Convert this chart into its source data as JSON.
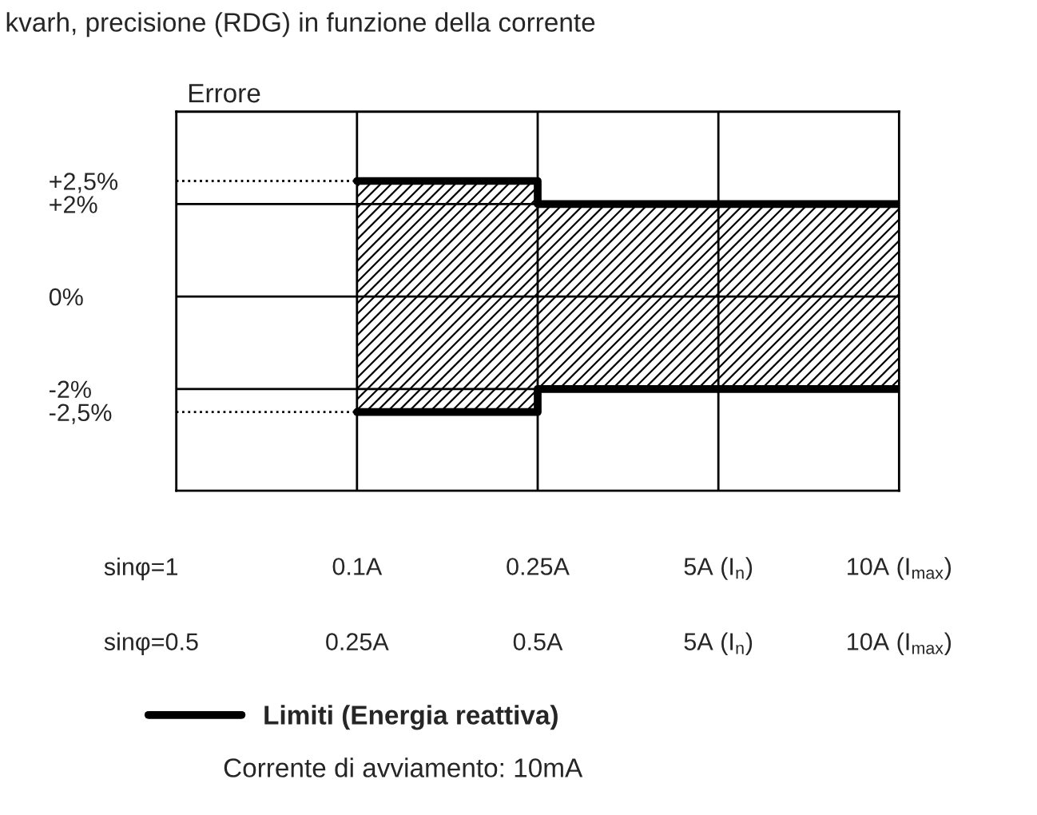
{
  "chart_data": {
    "type": "step",
    "title": "kvarh, precisione (RDG) in funzione della corrente",
    "ylabel": "Errore",
    "categories": [
      null,
      "0.1A",
      "0.25A",
      "5A (I$_{n}$)",
      "10A (I$_{max}$)"
    ],
    "ylim": [
      -4.2,
      4
    ],
    "yticks": [
      {
        "value": 2.5,
        "label": "+2,5%"
      },
      {
        "value": 2,
        "label": "+2%"
      },
      {
        "value": 0,
        "label": "0%"
      },
      {
        "value": -2,
        "label": "-2%"
      },
      {
        "value": -2.5,
        "label": "-2,5%"
      }
    ],
    "series": [
      {
        "name": "Limiti (Energia reattiva)",
        "color": "#000000",
        "values": [
          null,
          2.5,
          2,
          2,
          2
        ],
        "lower": [
          null,
          -2.5,
          -2,
          -2,
          -2
        ],
        "upper": [
          null,
          2.5,
          2,
          2,
          2
        ]
      },
      {
        "color": "#000000",
        "values": [
          null,
          -2.5,
          -2,
          -2,
          -2
        ]
      }
    ],
    "ref_lines": [
      {
        "axis": "y",
        "value": 2,
        "color": "#000000",
        "line_style": "solid"
      },
      {
        "axis": "y",
        "value": 0,
        "color": "#000000",
        "line_style": "solid"
      },
      {
        "axis": "y",
        "value": -2,
        "color": "#000000",
        "line_style": "solid"
      },
      {
        "axis": "y",
        "value": 2.5,
        "color": "#000000",
        "line_style": "dotted"
      },
      {
        "axis": "y",
        "value": -2.5,
        "color": "#000000",
        "line_style": "dotted"
      }
    ],
    "grid": "x",
    "legend": "bottom",
    "annotations": [
      "sinφ=1",
      "sinφ=0.5",
      "0.25A",
      "0.5A",
      "5A (I$_{n}$)",
      "10A (I$_{max}$)",
      "Corrente di avviamento: 10mA"
    ]
  }
}
